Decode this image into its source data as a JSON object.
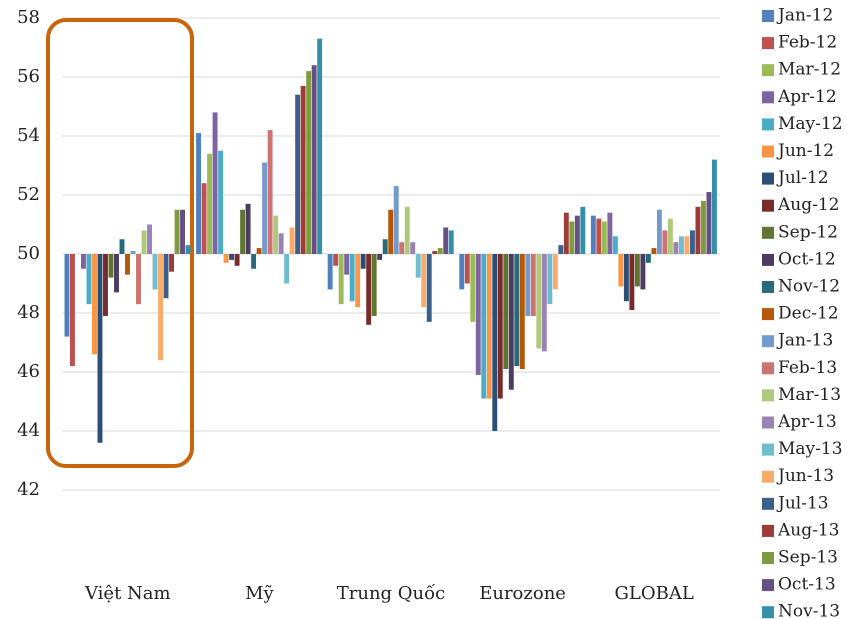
{
  "chart_data": {
    "type": "bar",
    "baseline": 50,
    "categories": [
      "Việt Nam",
      "Mỹ",
      "Trung Quốc",
      "Eurozone",
      "GLOBAL"
    ],
    "ylim": [
      42,
      58
    ],
    "yticks": [
      42,
      44,
      46,
      48,
      50,
      52,
      54,
      56,
      58
    ],
    "grid": true,
    "legend": "right",
    "series": [
      {
        "name": "Jan-12",
        "color": "#4f81bd",
        "values": [
          47.2,
          54.1,
          48.8,
          48.8,
          51.3
        ]
      },
      {
        "name": "Feb-12",
        "color": "#c0504d",
        "values": [
          46.2,
          52.4,
          49.6,
          49.0,
          51.2
        ]
      },
      {
        "name": "Mar-12",
        "color": "#9bbb59",
        "values": [
          50.0,
          53.4,
          48.3,
          47.7,
          51.1
        ]
      },
      {
        "name": "Apr-12",
        "color": "#8064a2",
        "values": [
          49.5,
          54.8,
          49.3,
          45.9,
          51.4
        ]
      },
      {
        "name": "May-12",
        "color": "#4bacc6",
        "values": [
          48.3,
          53.5,
          48.4,
          45.1,
          50.6
        ]
      },
      {
        "name": "Jun-12",
        "color": "#f79646",
        "values": [
          46.6,
          49.7,
          48.2,
          45.1,
          48.9
        ]
      },
      {
        "name": "Jul-12",
        "color": "#2c4d75",
        "values": [
          43.6,
          49.8,
          49.5,
          44.0,
          48.4
        ]
      },
      {
        "name": "Aug-12",
        "color": "#772c2a",
        "values": [
          47.9,
          49.6,
          47.6,
          45.1,
          48.1
        ]
      },
      {
        "name": "Sep-12",
        "color": "#5f7530",
        "values": [
          49.2,
          51.5,
          47.9,
          46.1,
          48.9
        ]
      },
      {
        "name": "Oct-12",
        "color": "#4d3b62",
        "values": [
          48.7,
          51.7,
          49.8,
          45.4,
          48.8
        ]
      },
      {
        "name": "Nov-12",
        "color": "#276a7c",
        "values": [
          50.5,
          49.5,
          50.5,
          46.2,
          49.7
        ]
      },
      {
        "name": "Dec-12",
        "color": "#b65708",
        "values": [
          49.3,
          50.2,
          51.5,
          46.1,
          50.2
        ]
      },
      {
        "name": "Jan-13",
        "color": "#729aca",
        "values": [
          50.1,
          53.1,
          52.3,
          47.9,
          51.5
        ]
      },
      {
        "name": "Feb-13",
        "color": "#cd7371",
        "values": [
          48.3,
          54.2,
          50.4,
          47.9,
          50.8
        ]
      },
      {
        "name": "Mar-13",
        "color": "#afc97a",
        "values": [
          50.8,
          51.3,
          51.6,
          46.8,
          51.2
        ]
      },
      {
        "name": "Apr-13",
        "color": "#9983b5",
        "values": [
          51.0,
          50.7,
          50.4,
          46.7,
          50.4
        ]
      },
      {
        "name": "May-13",
        "color": "#6fbdd1",
        "values": [
          48.8,
          49.0,
          49.2,
          48.3,
          50.6
        ]
      },
      {
        "name": "Jun-13",
        "color": "#f9ab6b",
        "values": [
          46.4,
          50.9,
          48.2,
          48.8,
          50.6
        ]
      },
      {
        "name": "Jul-13",
        "color": "#3a5f8b",
        "values": [
          48.5,
          55.4,
          47.7,
          50.3,
          50.8
        ]
      },
      {
        "name": "Aug-13",
        "color": "#9e3a38",
        "values": [
          49.4,
          55.7,
          50.1,
          51.4,
          51.6
        ]
      },
      {
        "name": "Sep-13",
        "color": "#7d9c40",
        "values": [
          51.5,
          56.2,
          50.2,
          51.1,
          51.8
        ]
      },
      {
        "name": "Oct-13",
        "color": "#664f83",
        "values": [
          51.5,
          56.4,
          50.9,
          51.3,
          52.1
        ]
      },
      {
        "name": "Nov-13",
        "color": "#3490a8",
        "values": [
          50.3,
          57.3,
          50.8,
          51.6,
          53.2
        ]
      }
    ]
  }
}
